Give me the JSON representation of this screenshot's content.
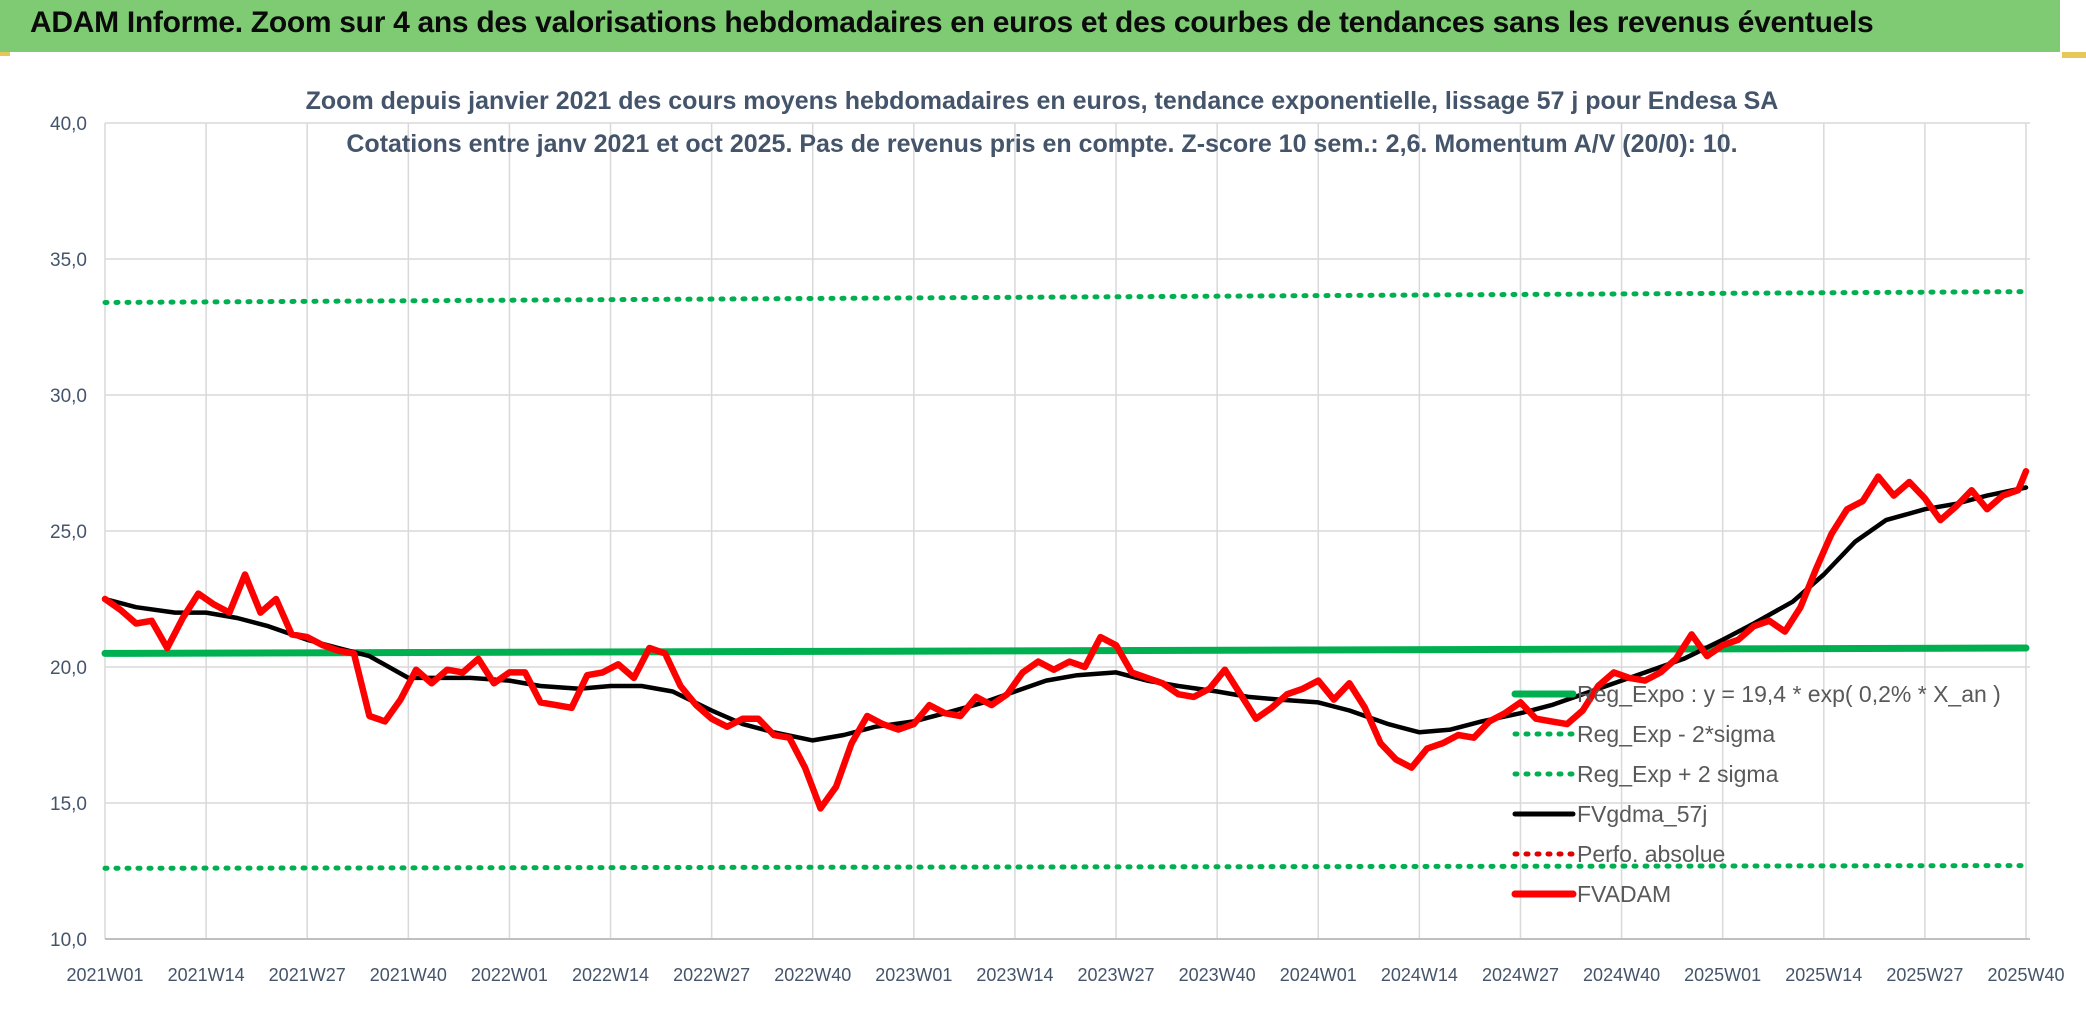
{
  "banner": {
    "title": "ADAM Informe. Zoom sur 4 ans des valorisations hebdomadaires en euros et des courbes de tendances sans les revenus éventuels"
  },
  "colors": {
    "banner_bg": "#7ecb73",
    "reg_expo": "#00b050",
    "bands": "#00b050",
    "fvgdma": "#000000",
    "perfo": "#e00000",
    "fvadam": "#ff0000",
    "axis_text": "#44546a",
    "grid": "#d9d9d9"
  },
  "chart_data": {
    "type": "line",
    "title_lines": [
      "Zoom depuis janvier 2021 des cours moyens hebdomadaires en euros, tendance exponentielle, lissage 57 j pour Endesa SA",
      "Cotations entre janv 2021 et oct 2025. Pas de revenus pris en compte. Z-score 10 sem.: 2,6. Momentum A/V (20/0): 10."
    ],
    "ylim": [
      10,
      40
    ],
    "y_ticks": [
      "10,0",
      "15,0",
      "20,0",
      "25,0",
      "30,0",
      "35,0",
      "40,0"
    ],
    "x_ticks": [
      "2021W01",
      "2021W14",
      "2021W27",
      "2021W40",
      "2022W01",
      "2022W14",
      "2022W27",
      "2022W40",
      "2023W01",
      "2023W14",
      "2023W27",
      "2023W40",
      "2024W01",
      "2024W14",
      "2024W27",
      "2024W40",
      "2025W01",
      "2025W14",
      "2025W27",
      "2025W40"
    ],
    "grid": "vertical and horizontal",
    "legend_position": "bottom-right, inside plot",
    "legend": [
      {
        "label": "Reg_Expo : y = 19,4 * exp( 0,2% *  X_an )",
        "style": "solid-thick",
        "color": "#00b050"
      },
      {
        "label": "Reg_Exp - 2*sigma",
        "style": "dotted",
        "color": "#00b050"
      },
      {
        "label": "Reg_Exp + 2 sigma",
        "style": "dotted",
        "color": "#00b050"
      },
      {
        "label": "FVgdma_57j",
        "style": "solid",
        "color": "#000000"
      },
      {
        "label": "Perfo. absolue",
        "style": "dotted",
        "color": "#e00000"
      },
      {
        "label": "FVADAM",
        "style": "solid-thick",
        "color": "#ff0000"
      }
    ],
    "series": [
      {
        "name": "Reg_Expo : y = 19,4 * exp( 0,2% *  X_an )",
        "x": [
          "2021W01",
          "2025W40"
        ],
        "values": [
          20.5,
          20.7
        ]
      },
      {
        "name": "Reg_Exp - 2*sigma",
        "x": [
          "2021W01",
          "2025W40"
        ],
        "values": [
          12.6,
          12.7
        ]
      },
      {
        "name": "Reg_Exp + 2 sigma",
        "x": [
          "2021W01",
          "2025W40"
        ],
        "values": [
          33.4,
          33.8
        ]
      },
      {
        "name": "FVgdma_57j",
        "x": [
          "2021W01",
          "2021W05",
          "2021W10",
          "2021W14",
          "2021W18",
          "2021W22",
          "2021W27",
          "2021W31",
          "2021W35",
          "2021W40",
          "2021W44",
          "2021W48",
          "2022W01",
          "2022W05",
          "2022W10",
          "2022W14",
          "2022W18",
          "2022W22",
          "2022W27",
          "2022W31",
          "2022W35",
          "2022W40",
          "2022W44",
          "2022W48",
          "2023W01",
          "2023W05",
          "2023W10",
          "2023W14",
          "2023W18",
          "2023W22",
          "2023W27",
          "2023W31",
          "2023W35",
          "2023W40",
          "2023W44",
          "2023W48",
          "2024W01",
          "2024W05",
          "2024W10",
          "2024W14",
          "2024W18",
          "2024W22",
          "2024W27",
          "2024W31",
          "2024W35",
          "2024W40",
          "2024W44",
          "2024W48",
          "2025W01",
          "2025W05",
          "2025W10",
          "2025W14",
          "2025W18",
          "2025W22",
          "2025W27",
          "2025W31",
          "2025W35",
          "2025W40"
        ],
        "values": [
          22.5,
          22.2,
          22.0,
          22.0,
          21.8,
          21.5,
          21.0,
          20.7,
          20.4,
          19.6,
          19.6,
          19.6,
          19.5,
          19.3,
          19.2,
          19.3,
          19.3,
          19.1,
          18.4,
          17.9,
          17.6,
          17.3,
          17.5,
          17.8,
          18.0,
          18.3,
          18.7,
          19.1,
          19.5,
          19.7,
          19.8,
          19.5,
          19.3,
          19.1,
          18.9,
          18.8,
          18.7,
          18.4,
          17.9,
          17.6,
          17.7,
          18.0,
          18.3,
          18.6,
          19.0,
          19.5,
          19.9,
          20.3,
          21.0,
          21.6,
          22.4,
          23.4,
          24.6,
          25.4,
          25.8,
          26.0,
          26.3,
          26.6
        ]
      },
      {
        "name": "FVADAM",
        "x": [
          "2021W01",
          "2021W03",
          "2021W05",
          "2021W07",
          "2021W09",
          "2021W11",
          "2021W13",
          "2021W15",
          "2021W17",
          "2021W19",
          "2021W21",
          "2021W23",
          "2021W25",
          "2021W27",
          "2021W29",
          "2021W31",
          "2021W33",
          "2021W35",
          "2021W37",
          "2021W39",
          "2021W41",
          "2021W43",
          "2021W45",
          "2021W47",
          "2021W49",
          "2021W51",
          "2022W01",
          "2022W03",
          "2022W05",
          "2022W07",
          "2022W09",
          "2022W11",
          "2022W13",
          "2022W15",
          "2022W17",
          "2022W19",
          "2022W21",
          "2022W23",
          "2022W25",
          "2022W27",
          "2022W29",
          "2022W31",
          "2022W33",
          "2022W35",
          "2022W37",
          "2022W39",
          "2022W41",
          "2022W43",
          "2022W45",
          "2022W47",
          "2022W49",
          "2022W51",
          "2023W01",
          "2023W03",
          "2023W05",
          "2023W07",
          "2023W09",
          "2023W11",
          "2023W13",
          "2023W15",
          "2023W17",
          "2023W19",
          "2023W21",
          "2023W23",
          "2023W25",
          "2023W27",
          "2023W29",
          "2023W31",
          "2023W33",
          "2023W35",
          "2023W37",
          "2023W39",
          "2023W41",
          "2023W43",
          "2023W45",
          "2023W47",
          "2023W49",
          "2023W51",
          "2024W01",
          "2024W03",
          "2024W05",
          "2024W07",
          "2024W09",
          "2024W11",
          "2024W13",
          "2024W15",
          "2024W17",
          "2024W19",
          "2024W21",
          "2024W23",
          "2024W25",
          "2024W27",
          "2024W29",
          "2024W31",
          "2024W33",
          "2024W35",
          "2024W37",
          "2024W39",
          "2024W41",
          "2024W43",
          "2024W45",
          "2024W47",
          "2024W49",
          "2024W51",
          "2025W01",
          "2025W03",
          "2025W05",
          "2025W07",
          "2025W09",
          "2025W11",
          "2025W13",
          "2025W15",
          "2025W17",
          "2025W19",
          "2025W21",
          "2025W23",
          "2025W25",
          "2025W27",
          "2025W29",
          "2025W31",
          "2025W33",
          "2025W35",
          "2025W37",
          "2025W39",
          "2025W40"
        ],
        "values": [
          22.5,
          22.1,
          21.6,
          21.7,
          20.7,
          21.8,
          22.7,
          22.3,
          22.0,
          23.4,
          22.0,
          22.5,
          21.2,
          21.1,
          20.8,
          20.6,
          20.5,
          18.2,
          18.0,
          18.8,
          19.9,
          19.4,
          19.9,
          19.8,
          20.3,
          19.4,
          19.8,
          19.8,
          18.7,
          18.6,
          18.5,
          19.7,
          19.8,
          20.1,
          19.6,
          20.7,
          20.5,
          19.3,
          18.6,
          18.1,
          17.8,
          18.1,
          18.1,
          17.5,
          17.4,
          16.3,
          14.8,
          15.6,
          17.2,
          18.2,
          17.9,
          17.7,
          17.9,
          18.6,
          18.3,
          18.2,
          18.9,
          18.6,
          19.0,
          19.8,
          20.2,
          19.9,
          20.2,
          20.0,
          21.1,
          20.8,
          19.8,
          19.6,
          19.4,
          19.0,
          18.9,
          19.2,
          19.9,
          19.0,
          18.1,
          18.5,
          19.0,
          19.2,
          19.5,
          18.8,
          19.4,
          18.5,
          17.2,
          16.6,
          16.3,
          17.0,
          17.2,
          17.5,
          17.4,
          18.0,
          18.3,
          18.7,
          18.1,
          18.0,
          17.9,
          18.4,
          19.3,
          19.8,
          19.6,
          19.5,
          19.8,
          20.3,
          21.2,
          20.4,
          20.8,
          21.0,
          21.5,
          21.7,
          21.3,
          22.2,
          23.6,
          24.9,
          25.8,
          26.1,
          27.0,
          26.3,
          26.8,
          26.2,
          25.4,
          25.9,
          26.5,
          25.8,
          26.3,
          26.5,
          27.2
        ]
      }
    ]
  }
}
